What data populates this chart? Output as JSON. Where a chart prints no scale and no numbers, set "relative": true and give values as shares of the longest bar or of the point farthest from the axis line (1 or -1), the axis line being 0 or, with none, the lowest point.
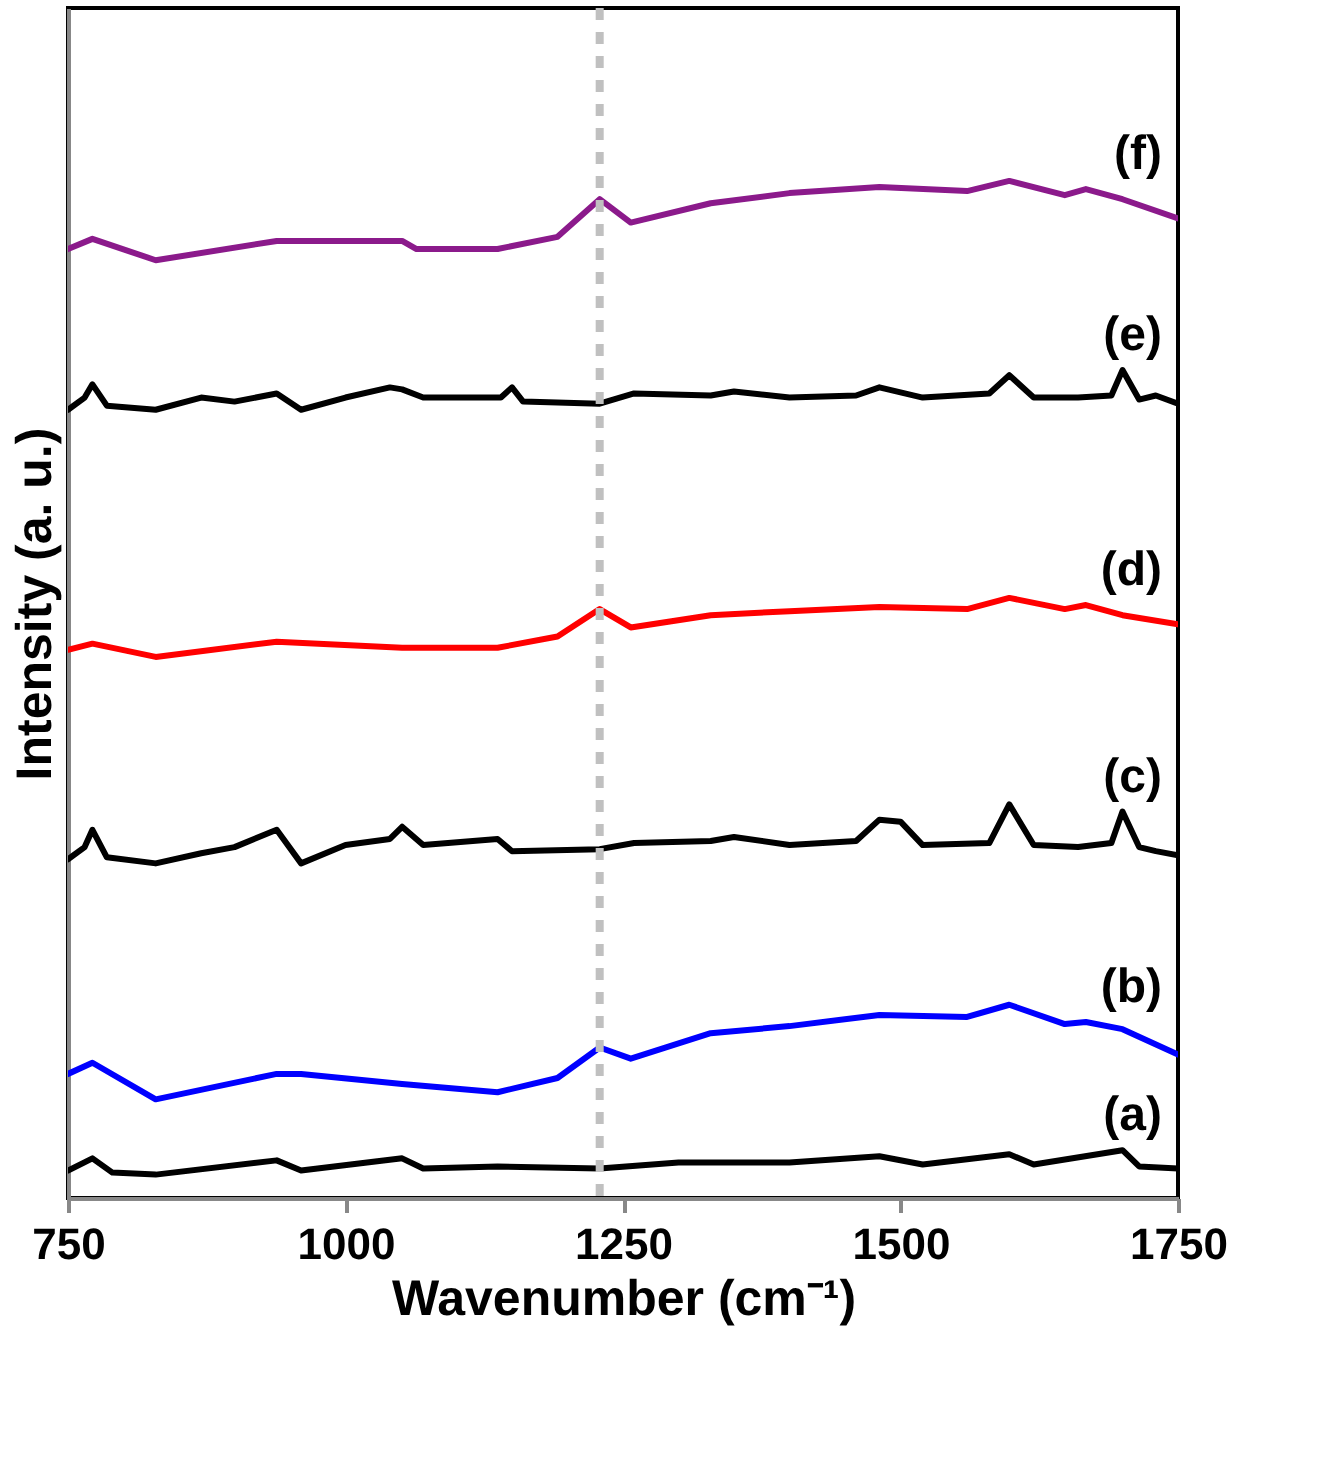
{
  "chart_data": {
    "type": "line",
    "relative": true,
    "xlabel": "Wavenumber (cm⁻¹)",
    "ylabel": "Intensity (a. u.)",
    "xlim": [
      750,
      1750
    ],
    "xticks": [
      750,
      1000,
      1250,
      1500,
      1750
    ],
    "tick_labels": "x",
    "marker": "none",
    "line_style": "solid",
    "series": [
      {
        "name": "(a)",
        "color": "#000000",
        "x": [
          750,
          772,
          790,
          829,
          938,
          960,
          1051,
          1070,
          1137,
          1229,
          1300,
          1400,
          1481,
          1520,
          1598,
          1620,
          1700,
          1715,
          1750
        ],
        "values": [
          0.027,
          0.039,
          0.025,
          0.023,
          0.037,
          0.027,
          0.039,
          0.029,
          0.031,
          0.029,
          0.035,
          0.035,
          0.041,
          0.033,
          0.043,
          0.033,
          0.047,
          0.031,
          0.029
        ]
      },
      {
        "name": "(b)",
        "color": "#0000ff",
        "x": [
          750,
          772,
          829,
          938,
          960,
          1051,
          1137,
          1191,
          1229,
          1257,
          1329,
          1400,
          1481,
          1560,
          1598,
          1648,
          1667,
          1700,
          1750
        ],
        "values": [
          0.122,
          0.133,
          0.097,
          0.122,
          0.122,
          0.112,
          0.104,
          0.118,
          0.148,
          0.137,
          0.162,
          0.169,
          0.18,
          0.178,
          0.19,
          0.171,
          0.173,
          0.166,
          0.141
        ]
      },
      {
        "name": "(c)",
        "color": "#000000",
        "x": [
          750,
          765,
          772,
          785,
          829,
          870,
          900,
          938,
          960,
          1000,
          1040,
          1051,
          1070,
          1137,
          1150,
          1229,
          1260,
          1329,
          1350,
          1400,
          1460,
          1481,
          1500,
          1520,
          1580,
          1598,
          1620,
          1660,
          1690,
          1700,
          1715,
          1730,
          1750
        ],
        "values": [
          0.333,
          0.345,
          0.362,
          0.335,
          0.329,
          0.339,
          0.345,
          0.362,
          0.329,
          0.347,
          0.353,
          0.365,
          0.347,
          0.353,
          0.341,
          0.343,
          0.349,
          0.351,
          0.355,
          0.347,
          0.351,
          0.372,
          0.37,
          0.347,
          0.349,
          0.387,
          0.347,
          0.345,
          0.349,
          0.38,
          0.345,
          0.341,
          0.337
        ]
      },
      {
        "name": "(d)",
        "color": "#ff0000",
        "x": [
          750,
          772,
          829,
          938,
          1051,
          1137,
          1191,
          1229,
          1257,
          1329,
          1400,
          1481,
          1560,
          1598,
          1648,
          1667,
          1700,
          1750
        ],
        "values": [
          0.539,
          0.545,
          0.532,
          0.547,
          0.541,
          0.541,
          0.552,
          0.579,
          0.561,
          0.573,
          0.577,
          0.581,
          0.579,
          0.59,
          0.579,
          0.583,
          0.573,
          0.564
        ]
      },
      {
        "name": "(e)",
        "color": "#000000",
        "x": [
          750,
          765,
          772,
          785,
          829,
          870,
          900,
          938,
          960,
          1000,
          1040,
          1051,
          1070,
          1140,
          1150,
          1160,
          1229,
          1260,
          1329,
          1350,
          1400,
          1460,
          1481,
          1520,
          1580,
          1598,
          1620,
          1660,
          1690,
          1700,
          1715,
          1730,
          1750
        ],
        "values": [
          0.775,
          0.787,
          0.8,
          0.779,
          0.775,
          0.787,
          0.783,
          0.791,
          0.775,
          0.787,
          0.797,
          0.795,
          0.787,
          0.787,
          0.797,
          0.783,
          0.781,
          0.791,
          0.789,
          0.793,
          0.787,
          0.789,
          0.797,
          0.787,
          0.791,
          0.809,
          0.787,
          0.787,
          0.789,
          0.814,
          0.785,
          0.789,
          0.781
        ]
      },
      {
        "name": "(f)",
        "color": "#8b1a8b",
        "x": [
          750,
          772,
          829,
          938,
          1051,
          1064,
          1137,
          1191,
          1229,
          1257,
          1329,
          1400,
          1481,
          1560,
          1598,
          1648,
          1667,
          1700,
          1750
        ],
        "values": [
          0.933,
          0.943,
          0.922,
          0.941,
          0.941,
          0.933,
          0.933,
          0.945,
          0.982,
          0.959,
          0.978,
          0.988,
          0.994,
          0.99,
          1.0,
          0.986,
          0.992,
          0.982,
          0.963
        ]
      }
    ],
    "ref_lines": [
      {
        "axis": "x",
        "value": 1229,
        "color": "#c0c0c0",
        "line_style": "dashed"
      }
    ]
  }
}
